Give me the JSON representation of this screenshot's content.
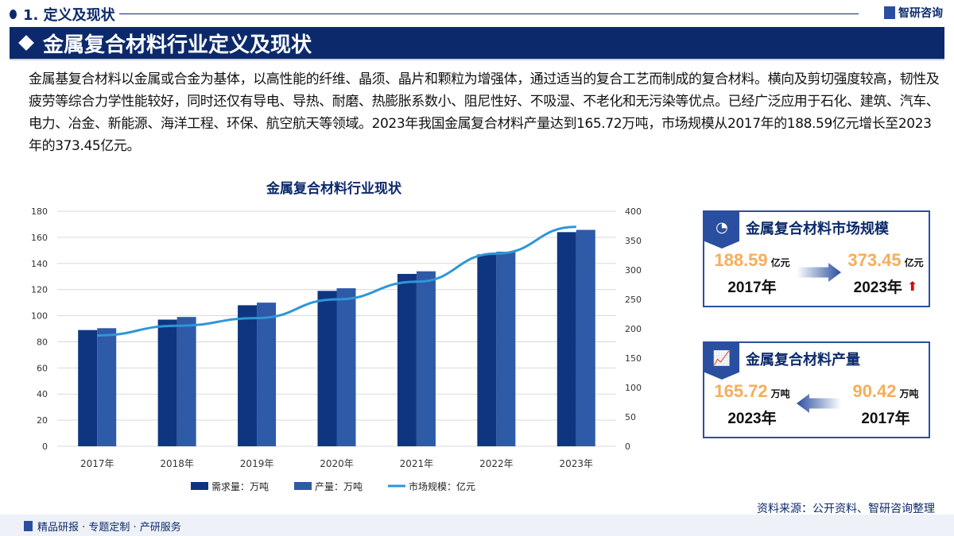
{
  "header": {
    "section": "1. 定义及现状",
    "brand": "智研咨询",
    "banner": "金属复合材料行业定义及现状"
  },
  "paragraph": "金属基复合材料以金属或合金为基体，以高性能的纤维、晶须、晶片和颗粒为增强体，通过适当的复合工艺而制成的复合材料。横向及剪切强度较高，韧性及疲劳等综合力学性能较好，同时还仅有导电、导热、耐磨、热膨胀系数小、阻尼性好、不吸湿、不老化和无污染等优点。已经广泛应用于石化、建筑、汽车、电力、冶金、新能源、海洋工程、环保、航空航天等领域。2023年我国金属复合材料产量达到165.72万吨，市场规模从2017年的188.59亿元增长至2023年的373.45亿元。",
  "chart_data": {
    "type": "bar",
    "title": "金属复合材料行业现状",
    "categories": [
      "2017年",
      "2018年",
      "2019年",
      "2020年",
      "2021年",
      "2022年",
      "2023年"
    ],
    "series": [
      {
        "name": "需求量：万吨",
        "type": "bar",
        "axis": "left",
        "color": "#0f3580",
        "values": [
          89,
          97,
          108,
          119,
          132,
          147,
          164
        ]
      },
      {
        "name": "产量：万吨",
        "type": "bar",
        "axis": "left",
        "color": "#2e5aa8",
        "values": [
          90.42,
          99,
          110,
          121,
          134,
          149,
          165.72
        ]
      },
      {
        "name": "市场规模：亿元",
        "type": "line",
        "axis": "right",
        "color": "#2f96d8",
        "values": [
          188.59,
          205,
          218,
          250,
          280,
          328,
          373.45
        ]
      }
    ],
    "ylim_left": [
      0,
      180
    ],
    "yticks_left": [
      0,
      20,
      40,
      60,
      80,
      100,
      120,
      140,
      160,
      180
    ],
    "ylim_right": [
      0,
      400
    ],
    "yticks_right": [
      0,
      50,
      100,
      150,
      200,
      250,
      300,
      350,
      400
    ],
    "grid": true,
    "legend": "bottom"
  },
  "cards": {
    "market": {
      "title": "金属复合材料市场规模",
      "from_value": "188.59",
      "from_unit": "亿元",
      "from_year": "2017年",
      "to_value": "373.45",
      "to_unit": "亿元",
      "to_year": "2023年"
    },
    "output": {
      "title": "金属复合材料产量",
      "left_value": "165.72",
      "left_unit": "万吨",
      "left_year": "2023年",
      "right_value": "90.42",
      "right_unit": "万吨",
      "right_year": "2017年"
    }
  },
  "footer": {
    "left": "精品研报 · 专题定制 · 产研服务",
    "source": "资料来源：公开资料、智研咨询整理"
  }
}
